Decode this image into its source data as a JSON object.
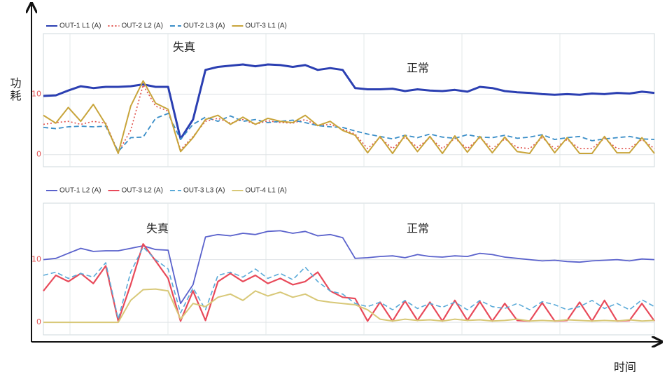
{
  "axis_titles": {
    "ylabel": "功耗",
    "xlabel": "时间"
  },
  "chart_data": [
    {
      "type": "line",
      "categories": [
        null,
        null,
        null,
        null,
        null,
        null,
        null,
        null,
        null,
        null,
        null,
        null,
        null,
        null,
        null,
        null,
        null,
        null,
        null,
        null,
        null,
        null,
        null,
        null,
        null,
        null,
        null,
        null,
        null,
        null,
        null,
        null,
        null,
        null,
        null,
        null,
        null,
        null,
        null,
        null,
        null,
        null,
        null,
        null,
        null,
        null,
        null,
        null,
        null,
        null
      ],
      "ylim": [
        -2,
        20
      ],
      "yticks": [
        0,
        10
      ],
      "grid": true,
      "legend": "top-left",
      "annotations": [
        "失真",
        "正常"
      ],
      "series": [
        {
          "name": "OUT-1 L1 (A)",
          "color": "#2b3fb2",
          "style": "solid",
          "values": [
            9.7,
            9.8,
            10.6,
            11.3,
            11.0,
            11.2,
            11.2,
            11.3,
            11.6,
            11.2,
            11.2,
            2.6,
            5.8,
            14.0,
            14.5,
            14.7,
            14.9,
            14.6,
            14.9,
            14.8,
            14.5,
            14.8,
            14.0,
            14.3,
            14.0,
            11.0,
            10.8,
            10.8,
            10.9,
            10.5,
            10.8,
            10.6,
            10.5,
            10.7,
            10.4,
            11.2,
            11.0,
            10.5,
            10.3,
            10.2,
            10.0,
            9.9,
            10.0,
            9.9,
            10.1,
            10.0,
            10.2,
            10.1,
            10.4,
            10.2
          ]
        },
        {
          "name": "OUT-2 L2 (A)",
          "color": "#e0504a",
          "style": "dotted",
          "values": [
            5.0,
            5.3,
            5.5,
            5.0,
            5.5,
            5.2,
            0.4,
            4.0,
            11.5,
            8.0,
            7.2,
            0.8,
            3.0,
            5.5,
            6.0,
            5.2,
            5.8,
            5.0,
            5.6,
            5.3,
            5.2,
            5.8,
            4.8,
            5.0,
            4.2,
            3.4,
            1.0,
            2.8,
            1.0,
            2.9,
            1.2,
            2.8,
            1.0,
            2.7,
            1.0,
            2.8,
            1.0,
            2.6,
            1.2,
            1.0,
            2.8,
            1.0,
            2.5,
            1.0,
            1.0,
            2.7,
            1.0,
            1.0,
            2.5,
            1.0
          ]
        },
        {
          "name": "OUT-2 L3 (A)",
          "color": "#3a8ec8",
          "style": "dashed",
          "values": [
            4.5,
            4.3,
            4.6,
            4.7,
            4.6,
            4.7,
            0.5,
            2.8,
            2.9,
            6.0,
            6.8,
            2.5,
            5.0,
            6.2,
            5.5,
            6.4,
            5.5,
            5.8,
            5.3,
            5.5,
            5.7,
            5.3,
            4.8,
            4.6,
            4.5,
            3.9,
            3.4,
            3.0,
            2.6,
            3.2,
            2.8,
            3.4,
            2.9,
            2.7,
            3.3,
            2.9,
            2.8,
            3.2,
            2.7,
            2.9,
            3.3,
            2.5,
            2.8,
            3.0,
            2.3,
            2.6,
            2.8,
            3.0,
            2.6,
            2.5
          ]
        },
        {
          "name": "OUT-3 L1 (A)",
          "color": "#c8a43a",
          "style": "solid",
          "values": [
            6.5,
            5.2,
            7.8,
            5.5,
            8.3,
            5.0,
            0.2,
            8.0,
            12.2,
            8.5,
            7.5,
            0.5,
            2.8,
            5.8,
            6.5,
            5.0,
            6.2,
            5.0,
            6.0,
            5.5,
            5.3,
            6.5,
            4.8,
            5.5,
            4.0,
            3.2,
            0.3,
            3.0,
            0.2,
            3.2,
            0.5,
            3.0,
            0.2,
            3.1,
            0.4,
            3.0,
            0.3,
            2.9,
            0.5,
            0.2,
            3.2,
            0.3,
            2.8,
            0.2,
            0.2,
            3.0,
            0.3,
            0.3,
            2.8,
            0.2
          ]
        }
      ]
    },
    {
      "type": "line",
      "categories": [
        null,
        null,
        null,
        null,
        null,
        null,
        null,
        null,
        null,
        null,
        null,
        null,
        null,
        null,
        null,
        null,
        null,
        null,
        null,
        null,
        null,
        null,
        null,
        null,
        null,
        null,
        null,
        null,
        null,
        null,
        null,
        null,
        null,
        null,
        null,
        null,
        null,
        null,
        null,
        null,
        null,
        null,
        null,
        null,
        null,
        null,
        null,
        null,
        null,
        null
      ],
      "ylim": [
        -2,
        19
      ],
      "yticks": [
        0,
        10
      ],
      "grid": true,
      "legend": "top-left",
      "annotations": [
        "失真",
        "正常"
      ],
      "series": [
        {
          "name": "OUT-1 L2 (A)",
          "color": "#5a62cc",
          "style": "solid",
          "values": [
            10.0,
            10.2,
            11.0,
            11.8,
            11.3,
            11.4,
            11.4,
            11.8,
            12.2,
            11.6,
            11.5,
            3.0,
            6.0,
            13.6,
            14.0,
            13.8,
            14.2,
            14.0,
            14.5,
            14.6,
            14.2,
            14.5,
            13.8,
            14.0,
            13.5,
            10.2,
            10.3,
            10.5,
            10.6,
            10.3,
            10.8,
            10.5,
            10.4,
            10.6,
            10.5,
            11.0,
            10.8,
            10.4,
            10.2,
            10.0,
            9.8,
            9.9,
            9.7,
            9.6,
            9.8,
            9.9,
            10.0,
            9.8,
            10.1,
            10.0
          ]
        },
        {
          "name": "OUT-3 L2 (A)",
          "color": "#e84a5a",
          "style": "solid",
          "values": [
            5.0,
            7.5,
            6.5,
            7.8,
            6.2,
            9.0,
            0.2,
            6.0,
            12.5,
            9.8,
            7.0,
            0.2,
            5.0,
            0.3,
            6.5,
            7.8,
            6.5,
            7.5,
            6.2,
            7.0,
            6.0,
            6.5,
            8.0,
            5.0,
            4.0,
            3.8,
            0.2,
            3.2,
            0.2,
            3.4,
            0.3,
            3.2,
            0.2,
            3.5,
            0.3,
            3.3,
            0.2,
            3.0,
            0.3,
            0.2,
            3.1,
            0.2,
            0.3,
            3.2,
            0.2,
            3.5,
            0.2,
            0.3,
            3.0,
            0.2
          ]
        },
        {
          "name": "OUT-3 L3 (A)",
          "color": "#5aaad8",
          "style": "dashed",
          "values": [
            7.5,
            8.0,
            7.0,
            7.8,
            7.2,
            9.5,
            0.5,
            8.0,
            12.0,
            10.0,
            8.5,
            1.5,
            5.5,
            2.0,
            7.5,
            8.0,
            7.2,
            8.5,
            7.0,
            7.8,
            6.8,
            8.8,
            6.5,
            5.0,
            4.5,
            3.0,
            2.5,
            3.2,
            2.0,
            3.5,
            2.2,
            3.0,
            2.4,
            3.2,
            2.0,
            3.5,
            2.5,
            2.2,
            3.0,
            2.0,
            3.3,
            2.8,
            2.0,
            2.5,
            3.5,
            2.2,
            3.0,
            2.0,
            3.6,
            2.5
          ]
        },
        {
          "name": "OUT-4 L1 (A)",
          "color": "#d8c878",
          "style": "solid",
          "values": [
            0,
            0,
            0,
            0,
            0,
            0,
            0,
            3.5,
            5.2,
            5.3,
            5.0,
            0.5,
            3.0,
            2.5,
            4.0,
            4.5,
            3.5,
            5.0,
            4.2,
            4.8,
            4.0,
            4.5,
            3.5,
            3.2,
            3.0,
            2.8,
            2.0,
            0.5,
            0.2,
            0.5,
            0.3,
            0.4,
            0.2,
            0.5,
            0.3,
            0.4,
            0.2,
            0.3,
            0.5,
            0.2,
            0.3,
            0.2,
            0.4,
            0.3,
            0.2,
            0.3,
            0.2,
            0.4,
            0.2,
            0.3
          ]
        }
      ]
    }
  ]
}
